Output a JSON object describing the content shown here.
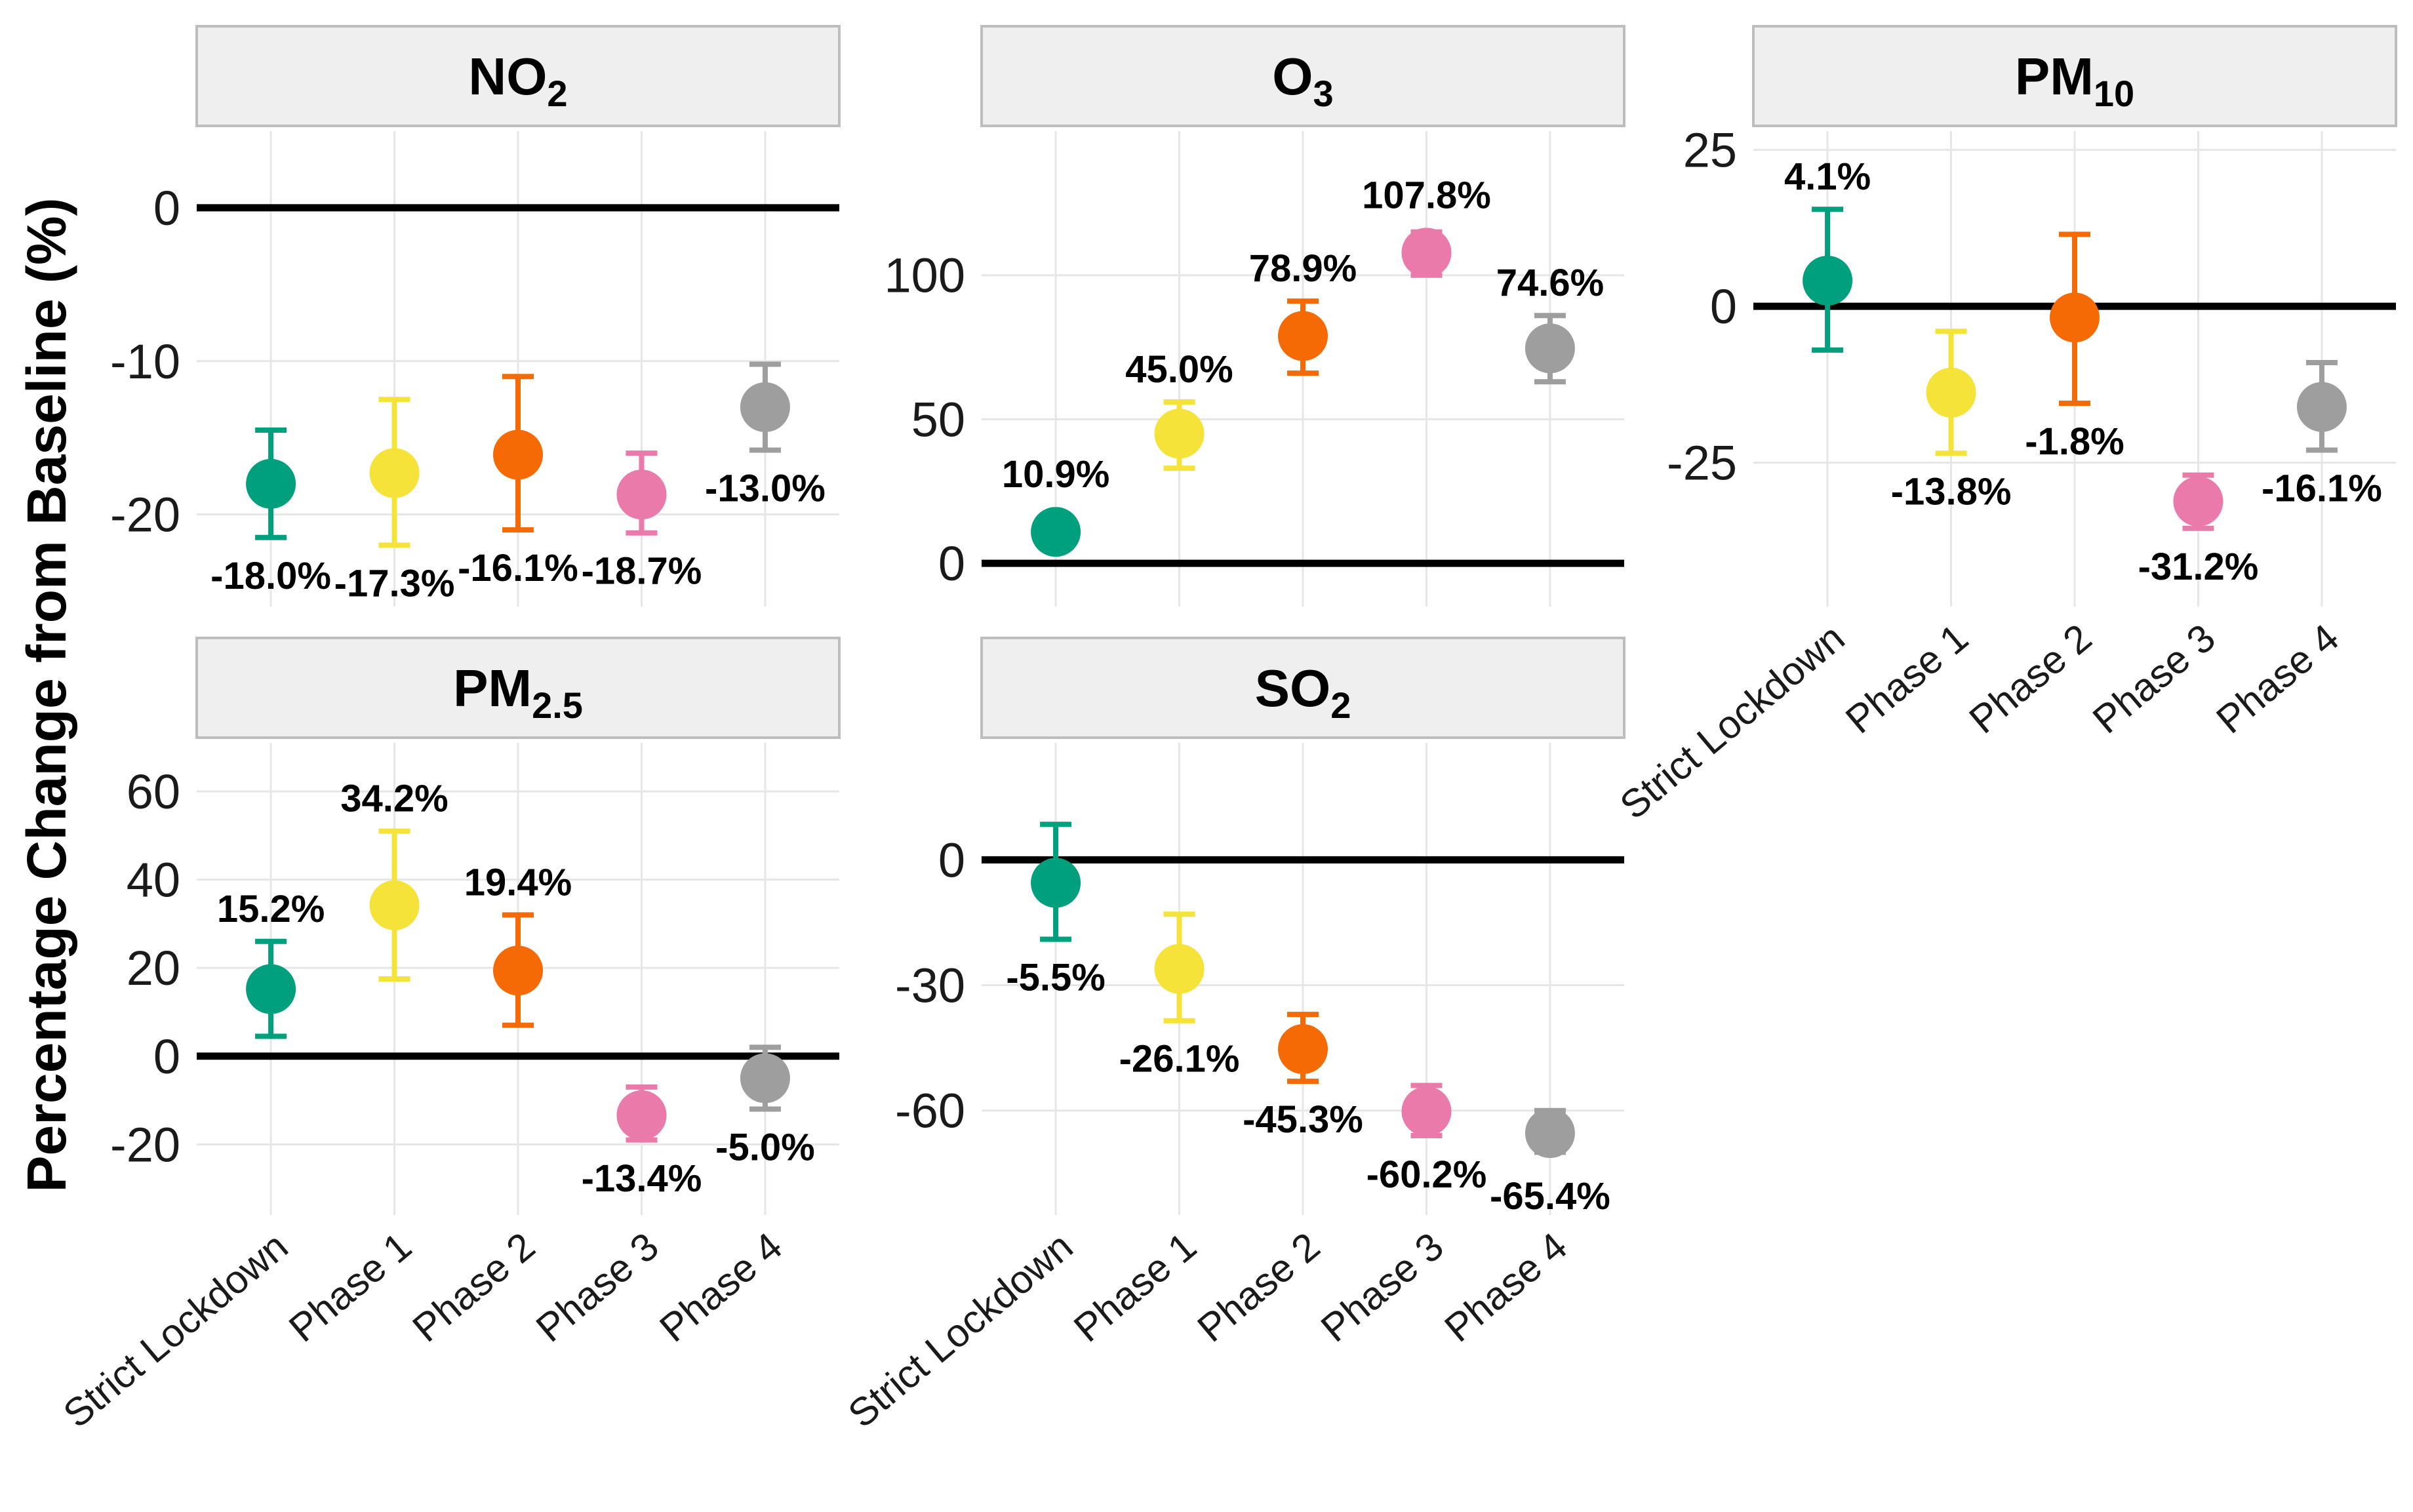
{
  "chart_data": {
    "type": "scatter",
    "ylabel": "Percentage Change from Baseline (%)",
    "categories": [
      "Strict Lockdown",
      "Phase 1",
      "Phase 2",
      "Phase 3",
      "Phase 4"
    ],
    "category_colors": [
      "#00a07e",
      "#f5e33a",
      "#f56a04",
      "#e97aaa",
      "#9e9e9e"
    ],
    "panels": [
      {
        "title": "NO",
        "sub": "2",
        "ylim": [
          -26,
          5
        ],
        "ticks": [
          0,
          -10,
          -20
        ],
        "tick_labels": [
          "0",
          "-10",
          "-20"
        ],
        "values": [
          -18.0,
          -17.3,
          -16.1,
          -18.7,
          -13.0
        ],
        "lower": [
          -21.5,
          -22.0,
          -21.0,
          -21.2,
          -15.8
        ],
        "upper": [
          -14.5,
          -12.5,
          -11.0,
          -16.0,
          -10.2
        ],
        "labels": [
          "-18.0%",
          "-17.3%",
          "-16.1%",
          "-18.7%",
          "-13.0%"
        ],
        "label_pos": [
          "below",
          "below",
          "below",
          "below",
          "below"
        ]
      },
      {
        "title": "O",
        "sub": "3",
        "ylim": [
          -15,
          150
        ],
        "ticks": [
          100,
          50,
          0
        ],
        "tick_labels": [
          "100",
          "50",
          "0"
        ],
        "values": [
          10.9,
          45.0,
          78.9,
          107.8,
          74.6
        ],
        "lower": [
          7.0,
          33.0,
          66.0,
          100.0,
          63.0
        ],
        "upper": [
          14.0,
          56.0,
          91.0,
          115.0,
          86.0
        ],
        "labels": [
          "10.9%",
          "45.0%",
          "78.9%",
          "107.8%",
          "74.6%"
        ],
        "label_pos": [
          "above",
          "above",
          "above",
          "above",
          "above"
        ]
      },
      {
        "title": "PM",
        "sub": "10",
        "ylim": [
          -48,
          28
        ],
        "ticks": [
          25,
          0,
          -25
        ],
        "tick_labels": [
          "25",
          "0",
          "-25"
        ],
        "values": [
          4.1,
          -13.8,
          -1.8,
          -31.2,
          -16.1
        ],
        "lower": [
          -7.0,
          -23.5,
          -15.5,
          -35.5,
          -23.0
        ],
        "upper": [
          15.5,
          -4.0,
          11.5,
          -27.0,
          -9.0
        ],
        "labels": [
          "4.1%",
          "-13.8%",
          "-1.8%",
          "-31.2%",
          "-16.1%"
        ],
        "label_pos": [
          "above",
          "below",
          "below",
          "below",
          "below"
        ]
      },
      {
        "title": "PM",
        "sub": "2.5",
        "ylim": [
          -36,
          71
        ],
        "ticks": [
          60,
          40,
          20,
          0,
          -20
        ],
        "tick_labels": [
          "60",
          "40",
          "20",
          "0",
          "-20"
        ],
        "values": [
          15.2,
          34.2,
          19.4,
          -13.4,
          -5.0
        ],
        "lower": [
          4.5,
          17.5,
          7.0,
          -19.0,
          -12.0
        ],
        "upper": [
          26.0,
          51.0,
          32.0,
          -7.0,
          2.0
        ],
        "labels": [
          "15.2%",
          "34.2%",
          "19.4%",
          "-13.4%",
          "-5.0%"
        ],
        "label_pos": [
          "above",
          "above",
          "above",
          "below",
          "below"
        ]
      },
      {
        "title": "SO",
        "sub": "2",
        "ylim": [
          -85,
          28
        ],
        "ticks": [
          0,
          -30,
          -60
        ],
        "tick_labels": [
          "0",
          "-30",
          "-60"
        ],
        "values": [
          -5.5,
          -26.1,
          -45.3,
          -60.2,
          -65.4
        ],
        "lower": [
          -19.0,
          -38.5,
          -53.0,
          -66.0,
          -70.0
        ],
        "upper": [
          8.5,
          -13.0,
          -37.0,
          -54.0,
          -60.0
        ],
        "labels": [
          "-5.5%",
          "-26.1%",
          "-45.3%",
          "-60.2%",
          "-65.4%"
        ],
        "label_pos": [
          "below",
          "below",
          "below",
          "below",
          "below"
        ]
      }
    ]
  }
}
